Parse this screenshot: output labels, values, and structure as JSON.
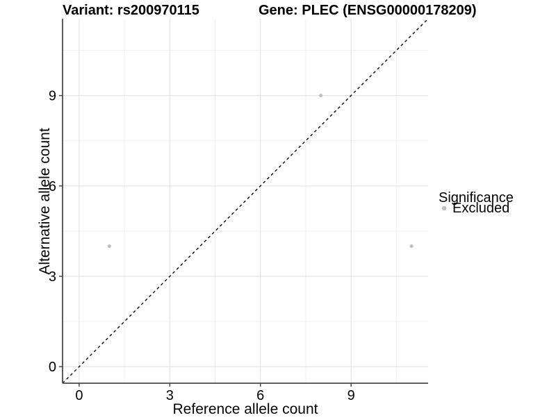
{
  "chart_data": {
    "type": "scatter",
    "titles": {
      "variant": "Variant: rs200970115",
      "gene": "Gene: PLEC (ENSG00000178209)"
    },
    "xlabel": "Reference allele count",
    "ylabel": "Alternative allele count",
    "xlim": [
      -0.55,
      11.55
    ],
    "ylim": [
      -0.55,
      11.55
    ],
    "x_ticks": [
      0,
      3,
      6,
      9
    ],
    "y_ticks": [
      0,
      3,
      6,
      9
    ],
    "x_minor_ticks": [
      1.5,
      4.5,
      7.5,
      10.5
    ],
    "y_minor_ticks": [
      1.5,
      4.5,
      7.5,
      10.5
    ],
    "grid": "major+minor",
    "series": [
      {
        "name": "Excluded",
        "color": "#bfbfbf",
        "points": [
          [
            1,
            4
          ],
          [
            8,
            9
          ],
          [
            11,
            4
          ]
        ]
      }
    ],
    "reference_line": {
      "type": "identity",
      "equation": "y = x",
      "style": "dashed",
      "color": "#000000"
    },
    "legend": {
      "title": "Significance",
      "position": "right",
      "items": [
        {
          "label": "Excluded",
          "color": "#bfbfbf",
          "marker": "circle"
        }
      ]
    },
    "style": {
      "background": "#ffffff",
      "grid_major_color": "#e4e4e4",
      "grid_minor_color": "#efefef",
      "axis_color": "#4a4a4a",
      "tick_label_color": "#000000"
    }
  }
}
